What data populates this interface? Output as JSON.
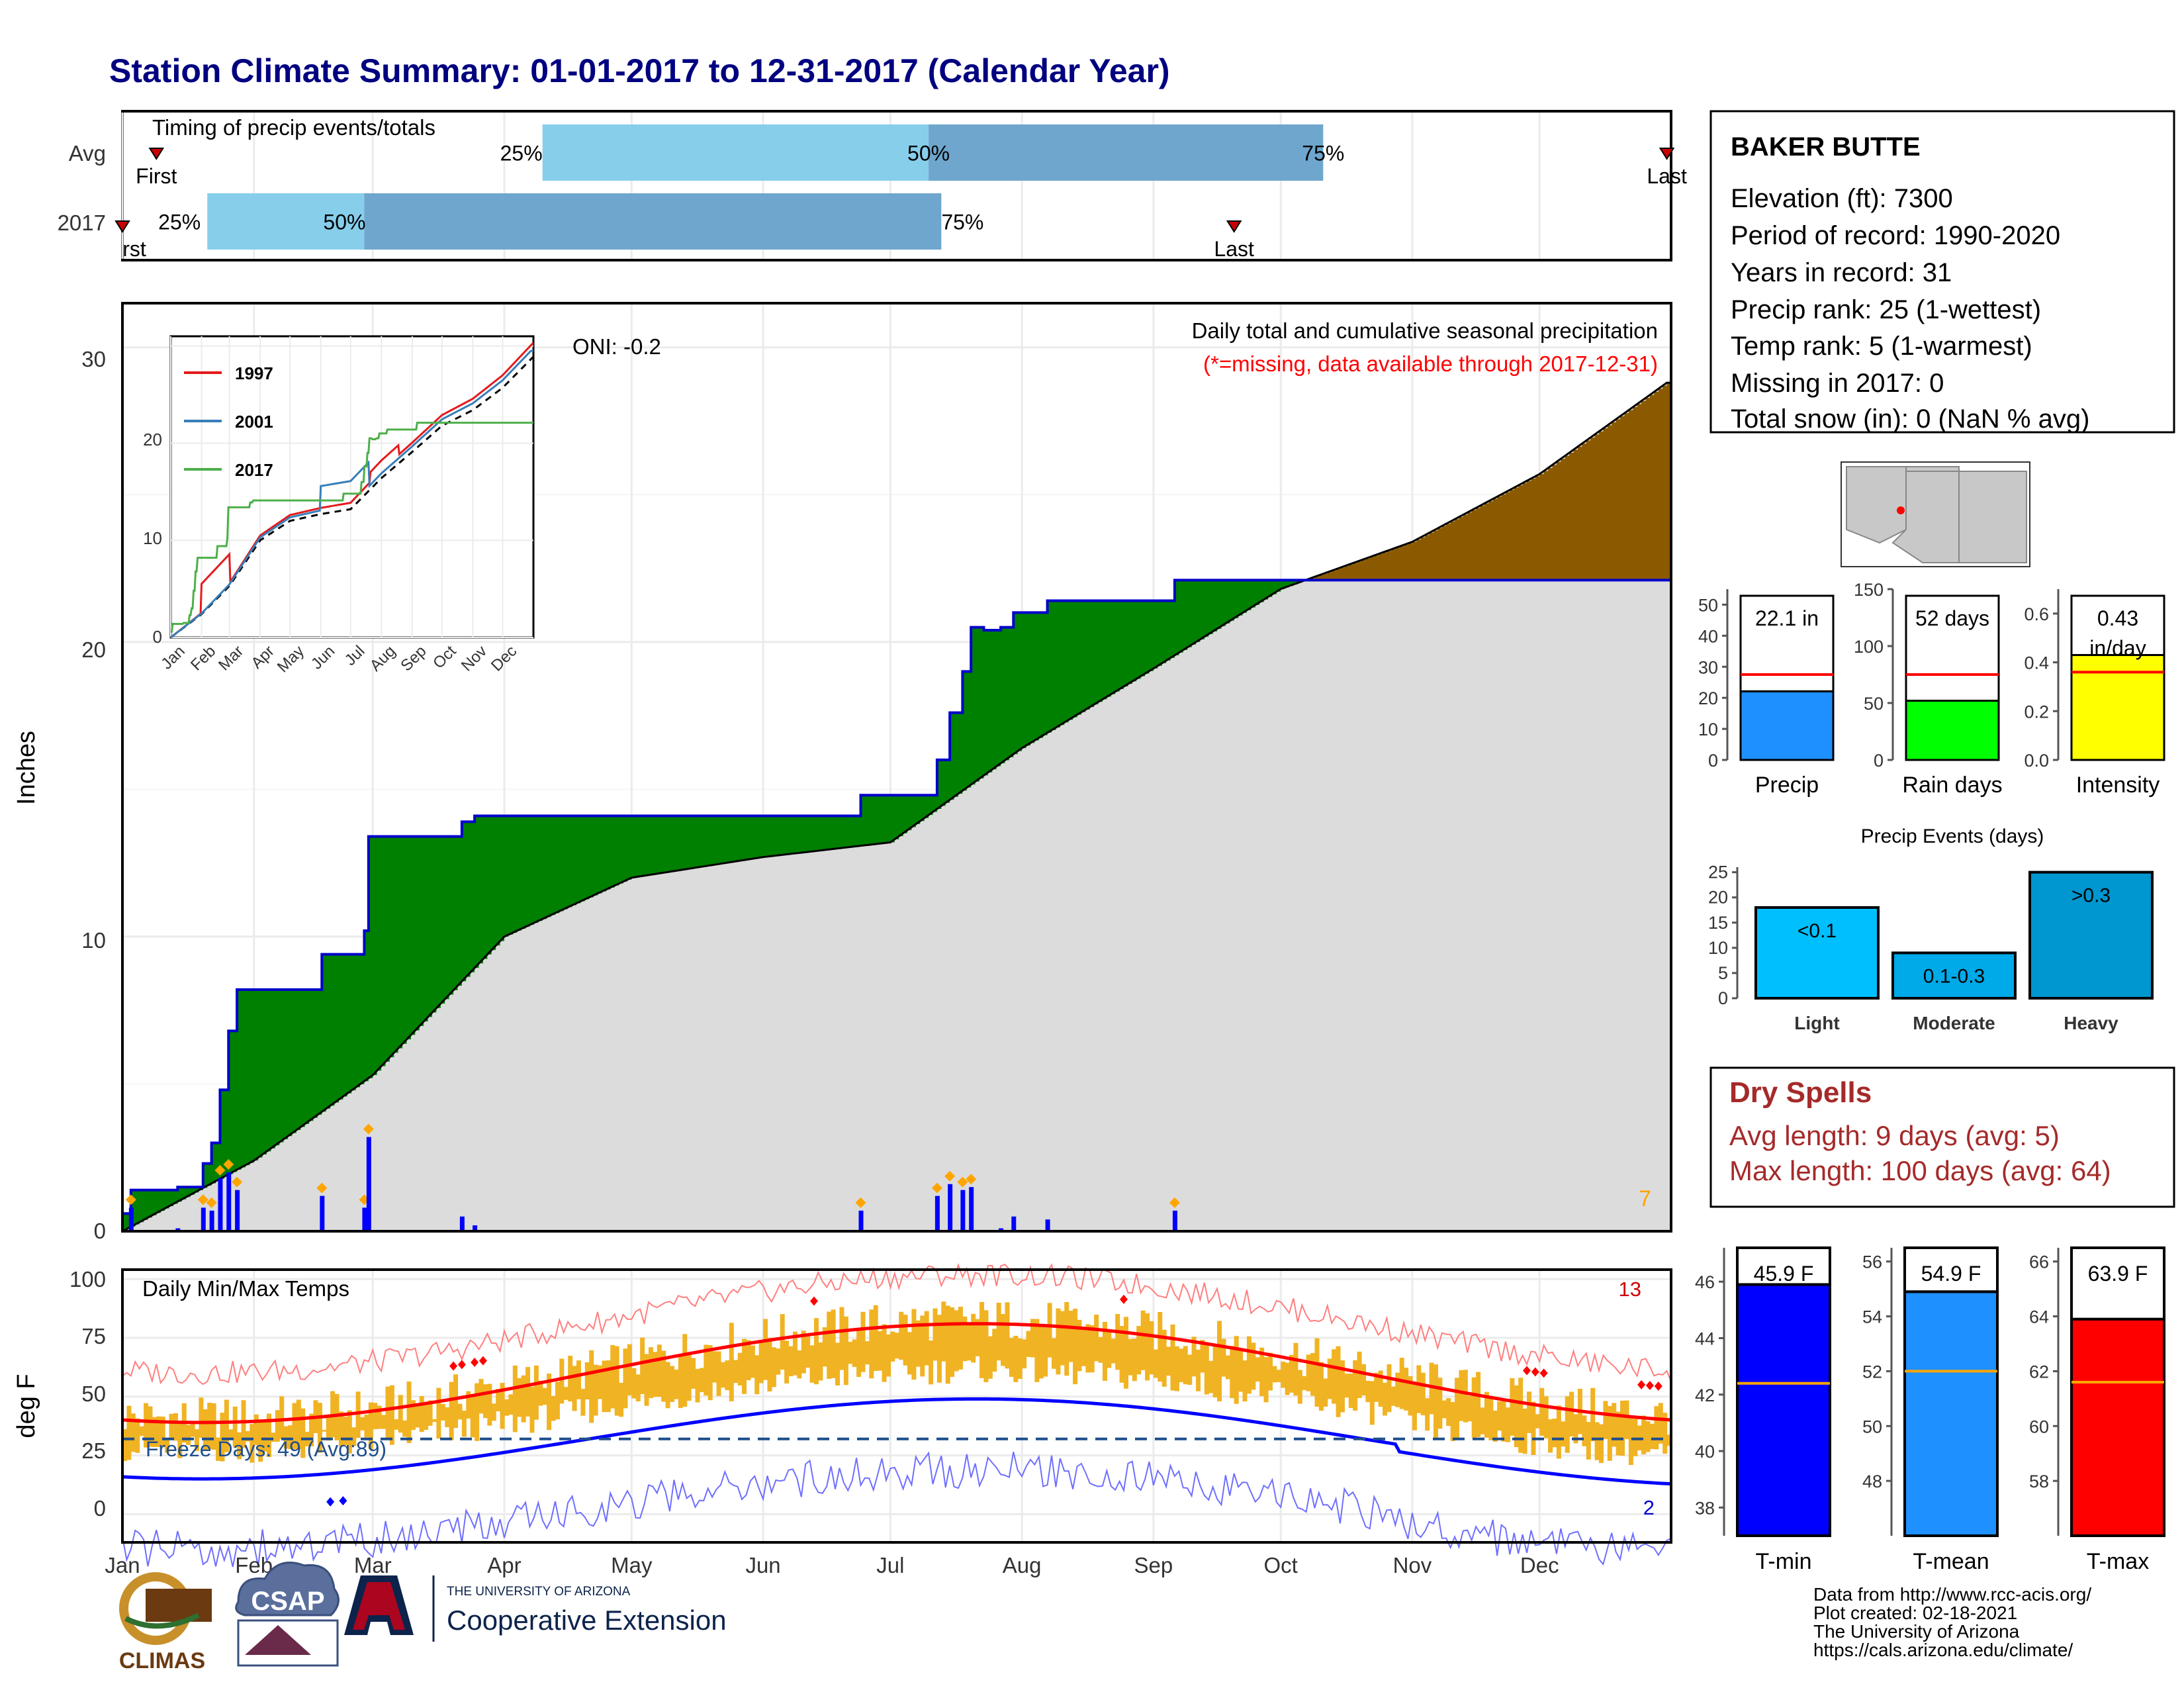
{
  "title": "Station Climate Summary: 01-01-2017 to 12-31-2017 (Calendar Year)",
  "months": [
    "Jan",
    "Feb",
    "Mar",
    "Apr",
    "May",
    "Jun",
    "Jul",
    "Aug",
    "Sep",
    "Oct",
    "Nov",
    "Dec"
  ],
  "timing": {
    "label": "Timing of precip events/totals",
    "rows": [
      "Avg",
      "2017"
    ],
    "avg": {
      "first": 8,
      "p25": 99,
      "p50": 190,
      "p75": 283,
      "last": 364
    },
    "y2017": {
      "first": 0,
      "p25": 20,
      "p50": 57,
      "p75": 193,
      "last": 262
    },
    "pct_labels": [
      "25%",
      "50%",
      "75%"
    ],
    "first_label": "First",
    "first_label_2017": "rst",
    "last_label": "Last"
  },
  "precip": {
    "title": "Daily total and cumulative seasonal precipitation",
    "subtitle": "(*=missing, data available through 2017-12-31)",
    "oni": "ONI: -0.2",
    "ylabel": "Inches",
    "yticks": [
      "0",
      "10",
      "20",
      "30"
    ],
    "corner_count": "7"
  },
  "inset": {
    "legend": [
      "1997",
      "2001",
      "2017"
    ],
    "colors": [
      "#e41a1c",
      "#377eb8",
      "#4daf4a"
    ],
    "yticks": [
      "0",
      "10",
      "20"
    ],
    "xticks": [
      "Jan",
      "Feb",
      "Mar",
      "Apr",
      "May",
      "Jun",
      "Jul",
      "Aug",
      "Sep",
      "Oct",
      "Nov",
      "Dec"
    ]
  },
  "temp": {
    "title": "Daily Min/Max Temps",
    "ylabel": "deg F",
    "yticks": [
      "0",
      "25",
      "50",
      "75",
      "100"
    ],
    "freeze_label": "Freeze Days: 49 (Avg:89)",
    "hot_count": "13",
    "cold_count": "2"
  },
  "station": {
    "name": "BAKER BUTTE",
    "lines": [
      "Elevation (ft): 7300",
      "Period of record: 1990-2020",
      "Years in record: 31",
      "Precip rank: 25 (1-wettest)",
      "Temp rank: 5 (1-warmest)",
      "Missing in 2017: 0",
      "Total snow (in): 0 (NaN % avg)"
    ]
  },
  "mini_bars": [
    {
      "label": "Precip",
      "value_label": "22.1 in",
      "value": 22.1,
      "avg": 27.5,
      "max": 55,
      "ticks": [
        "0",
        "10",
        "20",
        "30",
        "40",
        "50"
      ],
      "color": "#1e90ff"
    },
    {
      "label": "Rain days",
      "value_label": "52 days",
      "value": 52,
      "avg": 75,
      "max": 150,
      "ticks": [
        "0",
        "50",
        "100",
        "150"
      ],
      "color": "#00ff00"
    },
    {
      "label": "Intensity",
      "value_label": "0.43\nin/day",
      "value": 0.43,
      "avg": 0.36,
      "max": 0.7,
      "ticks": [
        "0.0",
        "0.2",
        "0.4",
        "0.6"
      ],
      "color": "#ffff00"
    }
  ],
  "events": {
    "title": "Precip Events (days)",
    "categories": [
      "Light",
      "Moderate",
      "Heavy"
    ],
    "bar_labels": [
      "<0.1",
      "0.1-0.3",
      ">0.3"
    ],
    "values": [
      18,
      9,
      25
    ],
    "colors": [
      "#00bfff",
      "#00a9e8",
      "#0096cf"
    ],
    "yticks": [
      "0",
      "5",
      "10",
      "15",
      "20",
      "25"
    ]
  },
  "dry_spells": {
    "title": "Dry Spells",
    "lines": [
      "Avg length: 9 days (avg: 5)",
      "Max length: 100 days (avg: 64)"
    ]
  },
  "temp_bars": [
    {
      "label": "T-min",
      "value_label": "45.9 F",
      "value": 45.9,
      "avg": 42.4,
      "min": 37,
      "max": 47.2,
      "ticks": [
        "38",
        "40",
        "42",
        "44",
        "46"
      ],
      "color": "#0000ff"
    },
    {
      "label": "T-mean",
      "value_label": "54.9 F",
      "value": 54.9,
      "avg": 52,
      "min": 46,
      "max": 56.5,
      "ticks": [
        "48",
        "50",
        "52",
        "54",
        "56"
      ],
      "color": "#1e90ff"
    },
    {
      "label": "T-max",
      "value_label": "63.9 F",
      "value": 63.9,
      "avg": 61.6,
      "min": 56,
      "max": 66.5,
      "ticks": [
        "58",
        "60",
        "62",
        "64",
        "66"
      ],
      "color": "#ff0000"
    }
  ],
  "footer": {
    "logos": [
      "CLIMAS",
      "CSAP",
      "THE UNIVERSITY OF ARIZONA",
      "Cooperative Extension"
    ],
    "credits": [
      "Data from http://www.rcc-acis.org/",
      "Plot created: 02-18-2021",
      "The University of Arizona",
      "https://cals.arizona.edu/climate/"
    ]
  },
  "chart_data": {
    "type": "area",
    "title": "Daily total and cumulative seasonal precipitation",
    "ylabel": "Inches",
    "ylim": [
      0,
      31.5
    ],
    "xlim": [
      "2017-01-01",
      "2017-12-31"
    ],
    "series": [
      {
        "name": "2017",
        "x": [
          "2017-01-01",
          "2017-01-03",
          "2017-01-14",
          "2017-01-20",
          "2017-01-22",
          "2017-01-24",
          "2017-01-26",
          "2017-01-28",
          "2017-02-10",
          "2017-02-17",
          "2017-02-27",
          "2017-02-28",
          "2017-03-20",
          "2017-03-22",
          "2017-03-25",
          "2017-06-23",
          "2017-06-24",
          "2017-07-06",
          "2017-07-12",
          "2017-07-15",
          "2017-07-18",
          "2017-07-20",
          "2017-07-23",
          "2017-07-27",
          "2017-07-30",
          "2017-08-07",
          "2017-08-12",
          "2017-09-05",
          "2017-09-06",
          "2017-12-31"
        ],
        "values": [
          0.6,
          1.4,
          1.5,
          2.3,
          3.0,
          4.8,
          6.8,
          8.2,
          8.2,
          9.4,
          10.2,
          13.4,
          13.4,
          13.9,
          14.1,
          14.1,
          14.8,
          14.8,
          16.0,
          17.6,
          19.0,
          20.5,
          20.4,
          20.5,
          21.0,
          21.4,
          21.4,
          21.4,
          22.1,
          22.1
        ]
      },
      {
        "name": "",
        "x": [
          "2017-01-01",
          "2017-02-01",
          "2017-03-01",
          "2017-04-01",
          "2017-05-01",
          "2017-06-01",
          "2017-07-01",
          "2017-08-01",
          "2017-09-01",
          "2017-10-01",
          "2017-11-01",
          "2017-12-01",
          "2017-12-31"
        ],
        "values": [
          0,
          2.4,
          5.3,
          10.0,
          12.0,
          12.7,
          13.2,
          16.4,
          19.1,
          21.8,
          23.4,
          25.7,
          28.8
        ]
      }
    ]
  }
}
